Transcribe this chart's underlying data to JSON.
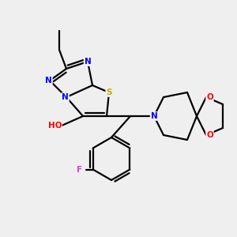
{
  "bg_color": "#efefef",
  "atom_colors": {
    "N": "#0000ff",
    "S": "#ccaa00",
    "O": "#ff0000",
    "F": "#cc44cc",
    "C": "#000000",
    "H": "#777777"
  },
  "bond_color": "#000000",
  "bond_width": 1.6
}
